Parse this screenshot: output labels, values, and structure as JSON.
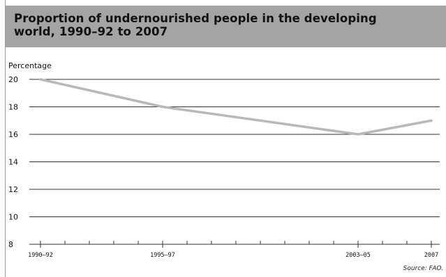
{
  "chart_data": {
    "type": "line",
    "title": "Proportion of undernourished people in the developing world, 1990–92 to 2007",
    "ylabel": "Percentage",
    "xlabel": "",
    "categories": [
      "1990–92",
      "1995–97",
      "2003–05",
      "2007"
    ],
    "x_years": [
      1991,
      1996,
      2004,
      2007
    ],
    "x_range": [
      1991,
      2007
    ],
    "series": [
      {
        "values": [
          20,
          18,
          16,
          17
        ]
      }
    ],
    "ylim": [
      8,
      20
    ],
    "yticks": [
      8,
      10,
      12,
      14,
      16,
      18,
      20
    ],
    "grid": true,
    "source": "Source: FAO.",
    "colors": {
      "header_bg": "#a4a4a4",
      "line": "#b8b8b8",
      "grid": "#333333"
    }
  }
}
